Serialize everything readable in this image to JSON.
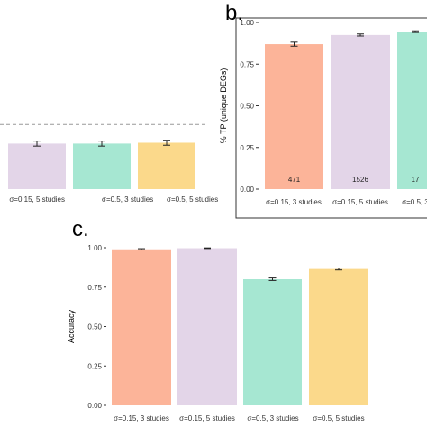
{
  "colors": {
    "bar": [
      "#FCB499",
      "#E3D5E8",
      "#A6E7D2",
      "#FBD98B"
    ],
    "error_bar": "#222222",
    "reference_line": "#999999",
    "panel_border": "#333333"
  },
  "chart_data": [
    {
      "type": "bar",
      "panel_letter": "",
      "title": "",
      "xlabel": "",
      "ylabel": "",
      "categories": [
        "",
        "",
        "σ=0.15, 5 studies",
        "σ=0.5, 3 studies",
        "σ=0.5, 5 studies"
      ],
      "values": [
        null,
        null,
        0.55,
        0.55,
        0.56
      ],
      "errors": [
        null,
        null,
        0.03,
        0.03,
        0.03
      ],
      "reference_line": 0.78,
      "ylim": [
        0,
        1
      ],
      "grid": false
    },
    {
      "type": "bar",
      "panel_letter": "b.",
      "title": "",
      "xlabel": "",
      "ylabel": "% TP (unique DEGs)",
      "categories": [
        "σ=0.15, 3 studies",
        "σ=0.15, 5 studies",
        "σ=0.5, 3"
      ],
      "values": [
        0.87,
        0.925,
        0.945
      ],
      "errors": [
        0.012,
        0.006,
        0.005
      ],
      "data_labels": [
        "471",
        "1526",
        "17"
      ],
      "yticks": [
        "0.00",
        "0.25",
        "0.50",
        "0.75",
        "1.00"
      ],
      "ylim": [
        0,
        1
      ],
      "grid": false
    },
    {
      "type": "bar",
      "panel_letter": "c.",
      "title": "",
      "xlabel": "",
      "ylabel": "Accuracy",
      "categories": [
        "σ=0.15, 3 studies",
        "σ=0.15, 5 studies",
        "σ=0.5, 3 studies",
        "σ=0.5, 5 studies"
      ],
      "values": [
        0.99,
        0.997,
        0.8,
        0.865
      ],
      "errors": [
        0.004,
        0.002,
        0.008,
        0.006
      ],
      "yticks": [
        "0.00",
        "0.25",
        "0.50",
        "0.75",
        "1.00"
      ],
      "ylim": [
        0,
        1
      ],
      "grid": false
    }
  ]
}
